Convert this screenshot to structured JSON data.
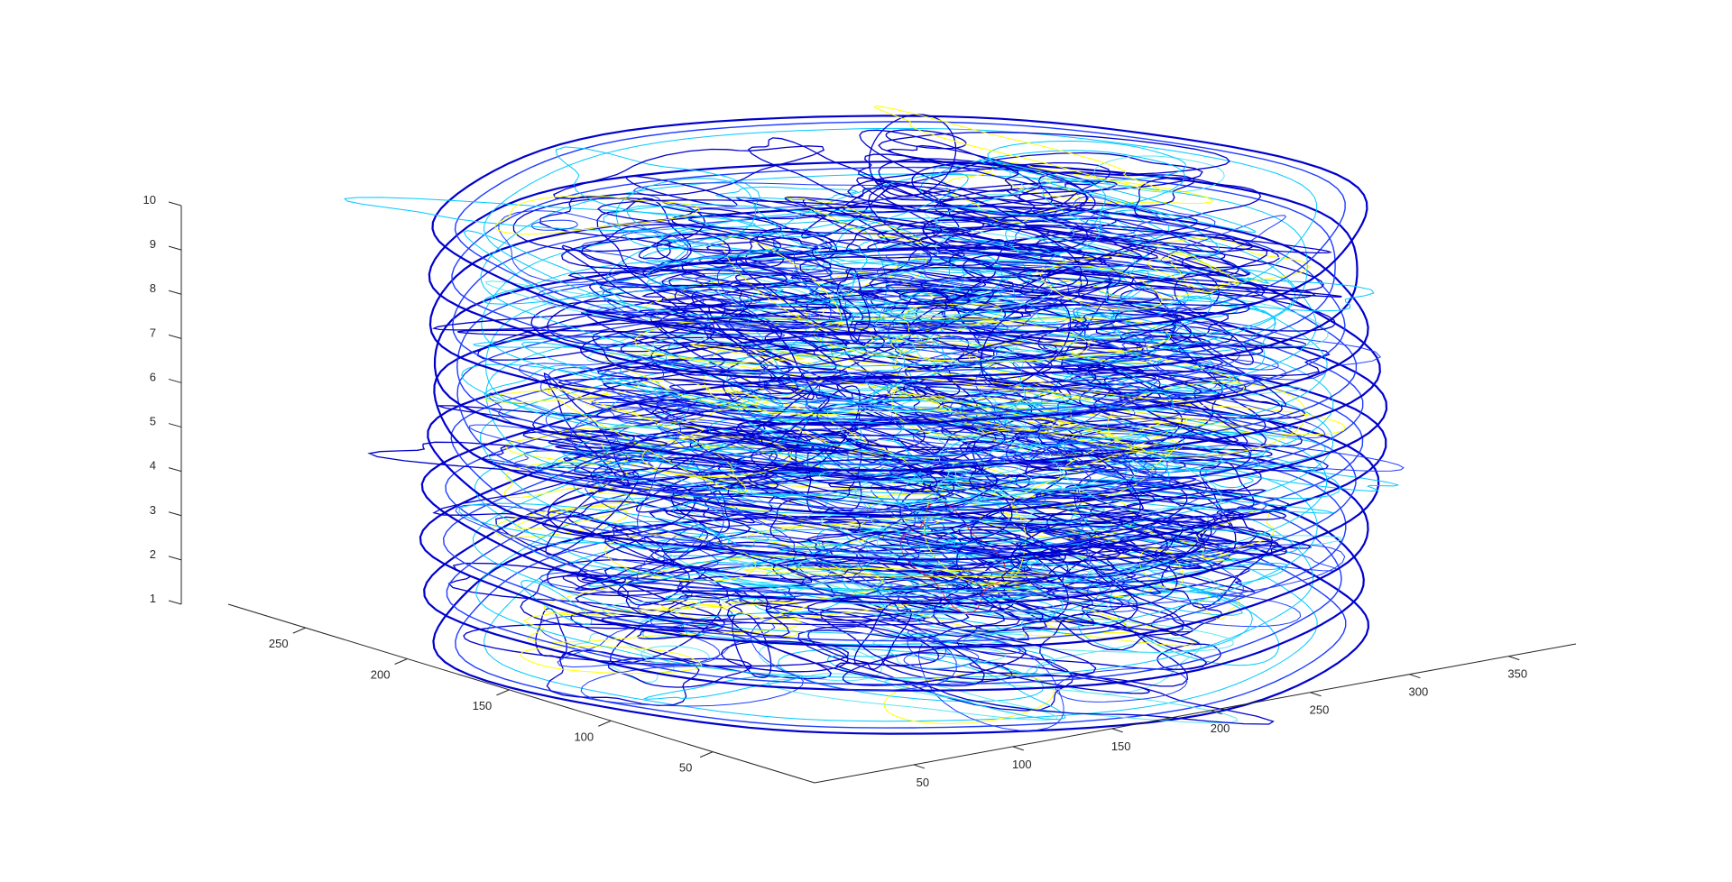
{
  "chart_data": {
    "type": "contour3",
    "title": "",
    "xlabel": "",
    "ylabel": "",
    "zlabel": "",
    "x_ticks": [
      50,
      100,
      150,
      200,
      250,
      300,
      350
    ],
    "y_ticks": [
      50,
      100,
      150,
      200,
      250
    ],
    "z_ticks": [
      1,
      2,
      3,
      4,
      5,
      6,
      7,
      8,
      9,
      10
    ],
    "xlim": [
      0,
      384
    ],
    "ylim": [
      0,
      288
    ],
    "zlim": [
      1,
      10
    ],
    "slices": [
      1,
      2,
      3,
      4,
      5,
      6,
      7,
      8,
      9,
      10
    ],
    "colormap": [
      "#0000cd",
      "#1e3cff",
      "#00c8ff",
      "#5ee6f0",
      "#ffff00",
      "#ff2020"
    ],
    "grid": false,
    "legend": "none"
  }
}
